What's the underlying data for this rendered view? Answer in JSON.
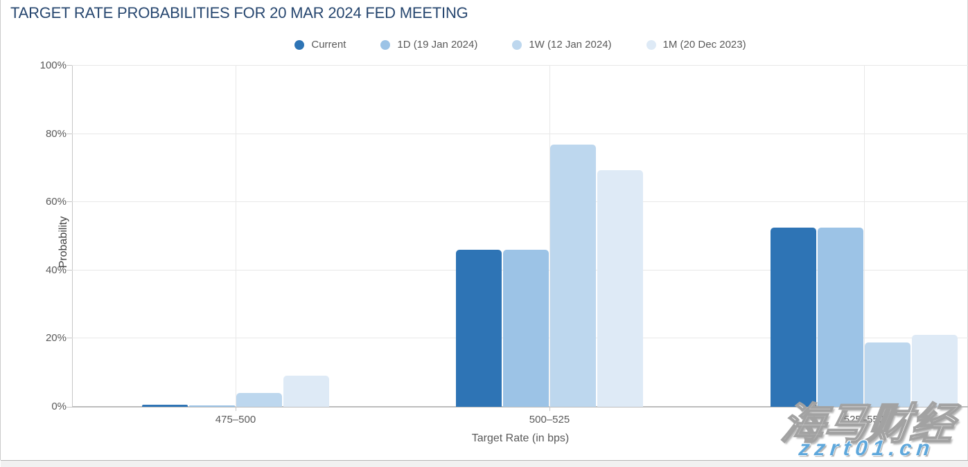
{
  "header": {
    "title": "TARGET RATE PROBABILITIES FOR 20 MAR 2024 FED MEETING",
    "title_color": "#26466F"
  },
  "chart_data": {
    "type": "bar",
    "title": "TARGET RATE PROBABILITIES FOR 20 MAR 2024 FED MEETING",
    "xlabel": "Target Rate (in bps)",
    "ylabel": "Probability",
    "categories": [
      "475–500",
      "500–525",
      "525–550"
    ],
    "series": [
      {
        "name": "Current",
        "color": "#2E74B5",
        "values": [
          0.6,
          46.1,
          52.6
        ]
      },
      {
        "name": "1D (19 Jan 2024)",
        "color": "#9CC3E6",
        "values": [
          0.4,
          46.0,
          52.6
        ]
      },
      {
        "name": "1W (12 Jan 2024)",
        "color": "#BDD7EE",
        "values": [
          4.0,
          76.9,
          18.8
        ]
      },
      {
        "name": "1M (20 Dec 2023)",
        "color": "#DEEAF6",
        "values": [
          9.1,
          69.3,
          21.0
        ]
      }
    ],
    "ylim": [
      0,
      100
    ],
    "yticks": [
      "0%",
      "20%",
      "40%",
      "60%",
      "80%",
      "100%"
    ],
    "grid": true,
    "legend_position": "top-center"
  },
  "watermark": {
    "line1": "海马财经",
    "line2": "zzrt01.cn",
    "url_color": "#5FA8DC"
  }
}
